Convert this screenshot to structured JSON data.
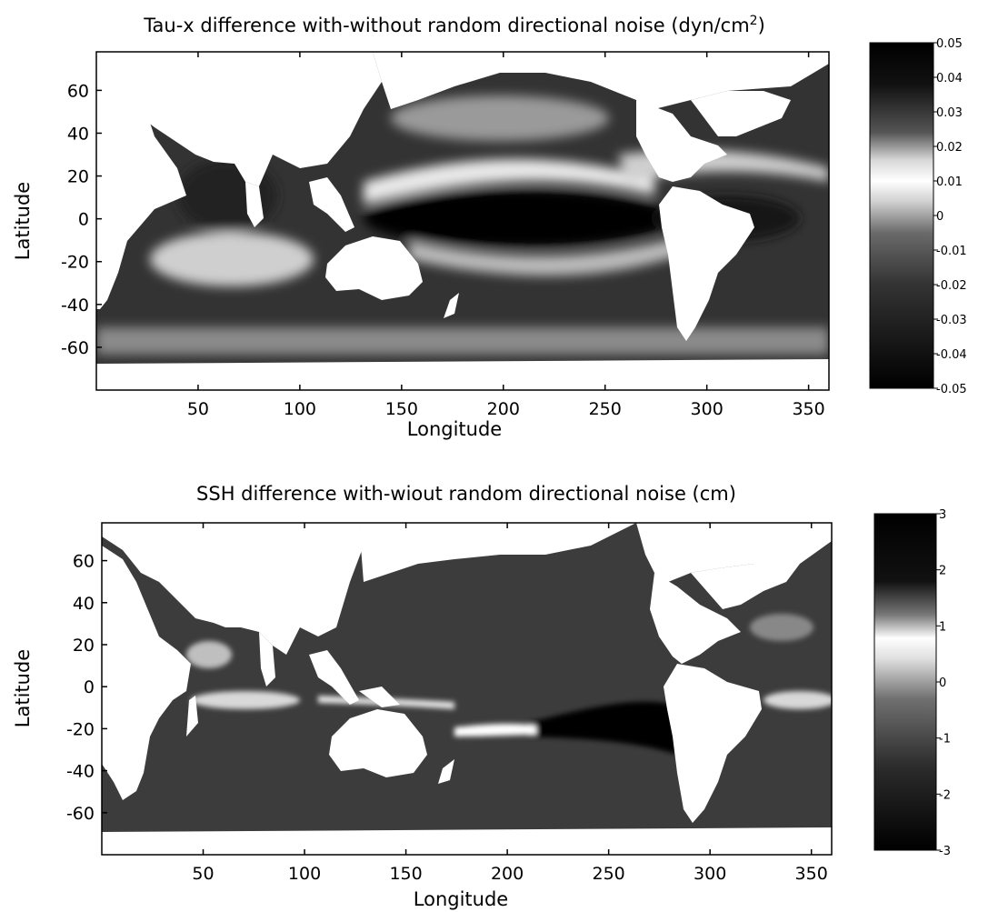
{
  "chart_data": [
    {
      "type": "heatmap",
      "title": "Tau-x difference with-without random directional noise (dyn/cm",
      "title_superscript": "2",
      "title_suffix": ")",
      "xlabel": "Longitude",
      "ylabel": "Latitude",
      "xlim": [
        0,
        360
      ],
      "ylim": [
        -80,
        78
      ],
      "xticks": [
        "50",
        "100",
        "150",
        "200",
        "250",
        "300",
        "350"
      ],
      "xtick_values": [
        50,
        100,
        150,
        200,
        250,
        300,
        350
      ],
      "yticks": [
        "60",
        "40",
        "20",
        "0",
        "-20",
        "-40",
        "-60"
      ],
      "ytick_values": [
        60,
        40,
        20,
        0,
        -20,
        -40,
        -60
      ],
      "colorbar": {
        "range": [
          -0.05,
          0.05
        ],
        "ticks": [
          "0.05",
          "0.04",
          "0.03",
          "0.02",
          "0.01",
          "0",
          "-0.01",
          "-0.02",
          "-0.03",
          "-0.04",
          "-0.05"
        ],
        "tick_values": [
          0.05,
          0.04,
          0.03,
          0.02,
          0.01,
          0,
          -0.01,
          -0.02,
          -0.03,
          -0.04,
          -0.05
        ],
        "colormap": "black-white-black (white near 0.01)"
      },
      "colors": {
        "land": "#ffffff",
        "ocean_typical": "#3a3a3a",
        "max_abs": "#000000"
      }
    },
    {
      "type": "heatmap",
      "title": "SSH difference with-wiout random directional noise (cm)",
      "xlabel": "Longitude",
      "ylabel": "Latitude",
      "xlim": [
        0,
        360
      ],
      "ylim": [
        -80,
        78
      ],
      "xticks": [
        "50",
        "100",
        "150",
        "200",
        "250",
        "300",
        "350"
      ],
      "xtick_values": [
        50,
        100,
        150,
        200,
        250,
        300,
        350
      ],
      "yticks": [
        "60",
        "40",
        "20",
        "0",
        "-20",
        "-40",
        "-60"
      ],
      "ytick_values": [
        60,
        40,
        20,
        0,
        -20,
        -40,
        -60
      ],
      "colorbar": {
        "range": [
          -3,
          3
        ],
        "ticks": [
          "3",
          "2",
          "1",
          "0",
          "-1",
          "-2",
          "-3"
        ],
        "tick_values": [
          3,
          2,
          1,
          0,
          -1,
          -2,
          -3
        ],
        "colormap": "black-white-black (white near 0.7)"
      },
      "colors": {
        "land": "#ffffff",
        "ocean_typical": "#404040",
        "max_abs": "#000000"
      }
    }
  ]
}
